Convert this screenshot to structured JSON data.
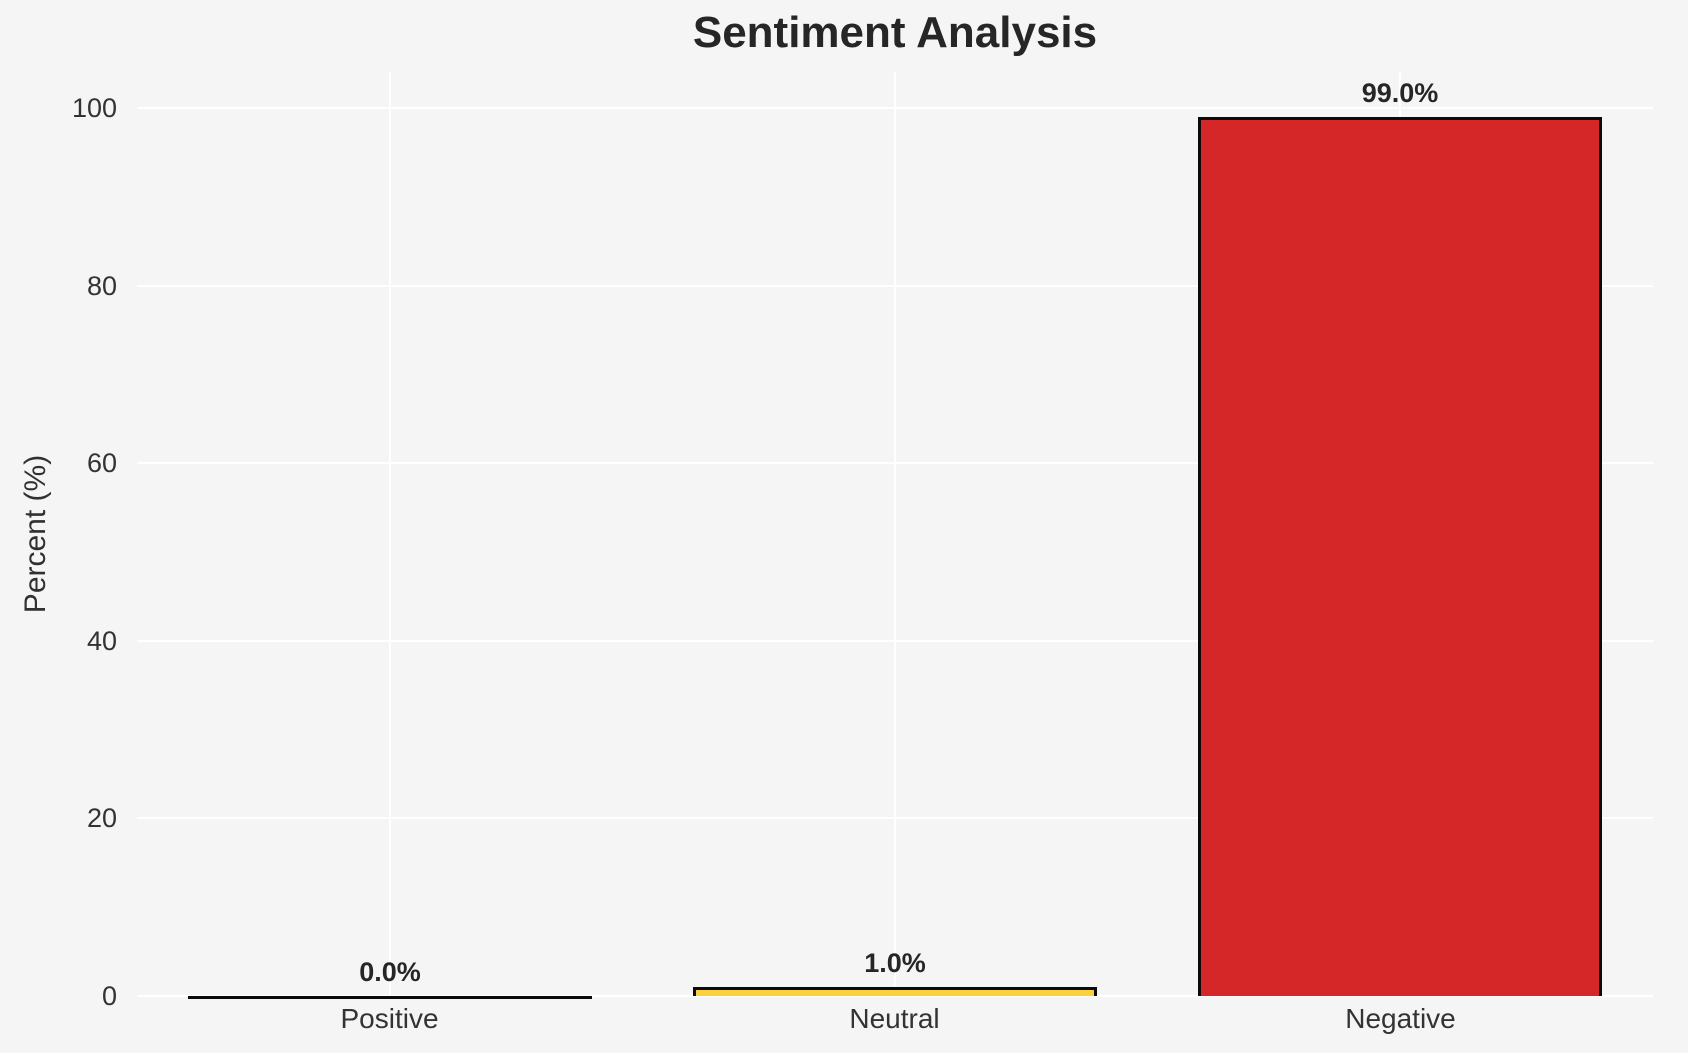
{
  "chart_data": {
    "type": "bar",
    "title": "Sentiment Analysis",
    "xlabel": "",
    "ylabel": "Percent (%)",
    "categories": [
      "Positive",
      "Neutral",
      "Negative"
    ],
    "values": [
      0.0,
      1.0,
      99.0
    ],
    "bar_labels": [
      "0.0%",
      "1.0%",
      "99.0%"
    ],
    "bar_colors": [
      "#2ca02c",
      "#fad03c",
      "#d62728"
    ],
    "bar_edge_color": "#0a0a0a",
    "yticks": [
      0,
      20,
      40,
      60,
      80,
      100
    ],
    "ylim": [
      0,
      104
    ],
    "grid": true,
    "gridline_color": "#ffffff",
    "background_color": "#f5f5f6",
    "legend": null
  }
}
